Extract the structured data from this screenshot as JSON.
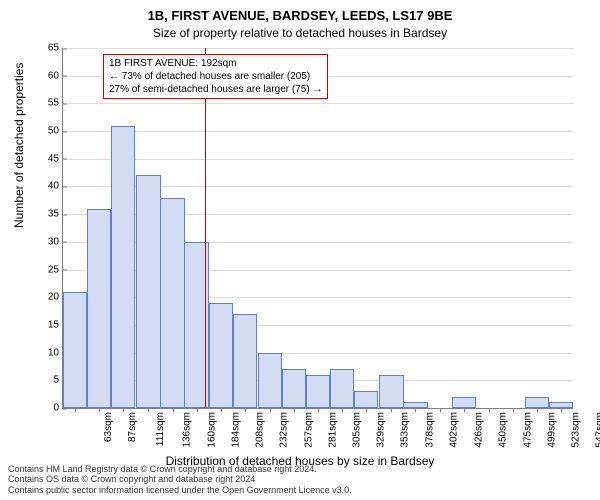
{
  "chart": {
    "type": "histogram",
    "title_main": "1B, FIRST AVENUE, BARDSEY, LEEDS, LS17 9BE",
    "title_sub": "Size of property relative to detached houses in Bardsey",
    "y_axis_label": "Number of detached properties",
    "x_axis_label": "Distribution of detached houses by size in Bardsey",
    "background_color": "#ffffff",
    "grid_color": "#dddddd",
    "axis_color": "#808080",
    "bar_fill_color": "#d2ddf3",
    "bar_border_color": "#6080d0",
    "reference_line_color": "#cc0000",
    "reference_line_x": 192,
    "y_ticks": [
      0,
      5,
      10,
      15,
      20,
      25,
      30,
      35,
      40,
      45,
      50,
      55,
      60,
      65
    ],
    "y_max": 65,
    "x_ticks": [
      "63sqm",
      "87sqm",
      "111sqm",
      "136sqm",
      "160sqm",
      "184sqm",
      "208sqm",
      "232sqm",
      "257sqm",
      "281sqm",
      "305sqm",
      "329sqm",
      "353sqm",
      "378sqm",
      "402sqm",
      "426sqm",
      "450sqm",
      "475sqm",
      "499sqm",
      "523sqm",
      "547sqm"
    ],
    "x_min": 51,
    "x_max": 559,
    "bar_width_units": 24.2,
    "bars": [
      {
        "x_left": 51,
        "value": 21
      },
      {
        "x_left": 75,
        "value": 36
      },
      {
        "x_left": 99,
        "value": 51
      },
      {
        "x_left": 124,
        "value": 42
      },
      {
        "x_left": 148,
        "value": 38
      },
      {
        "x_left": 172,
        "value": 30
      },
      {
        "x_left": 196,
        "value": 19
      },
      {
        "x_left": 220,
        "value": 17
      },
      {
        "x_left": 245,
        "value": 10
      },
      {
        "x_left": 269,
        "value": 7
      },
      {
        "x_left": 293,
        "value": 6
      },
      {
        "x_left": 317,
        "value": 7
      },
      {
        "x_left": 341,
        "value": 3
      },
      {
        "x_left": 366,
        "value": 6
      },
      {
        "x_left": 390,
        "value": 1
      },
      {
        "x_left": 414,
        "value": 0
      },
      {
        "x_left": 438,
        "value": 2
      },
      {
        "x_left": 463,
        "value": 0
      },
      {
        "x_left": 487,
        "value": 0
      },
      {
        "x_left": 511,
        "value": 2
      },
      {
        "x_left": 535,
        "value": 1
      }
    ],
    "annotation": {
      "line1": "1B FIRST AVENUE: 192sqm",
      "line2": "← 73% of detached houses are smaller (205)",
      "line3": "27% of semi-detached houses are larger (75) →",
      "border_color": "#cc0000",
      "font_size": 10
    }
  },
  "footer": {
    "line1": "Contains HM Land Registry data © Crown copyright and database right 2024.",
    "line2": "Contains OS data © Crown copyright and database right 2024",
    "line3": "Contains public sector information licensed under the Open Government Licence v3.0."
  }
}
